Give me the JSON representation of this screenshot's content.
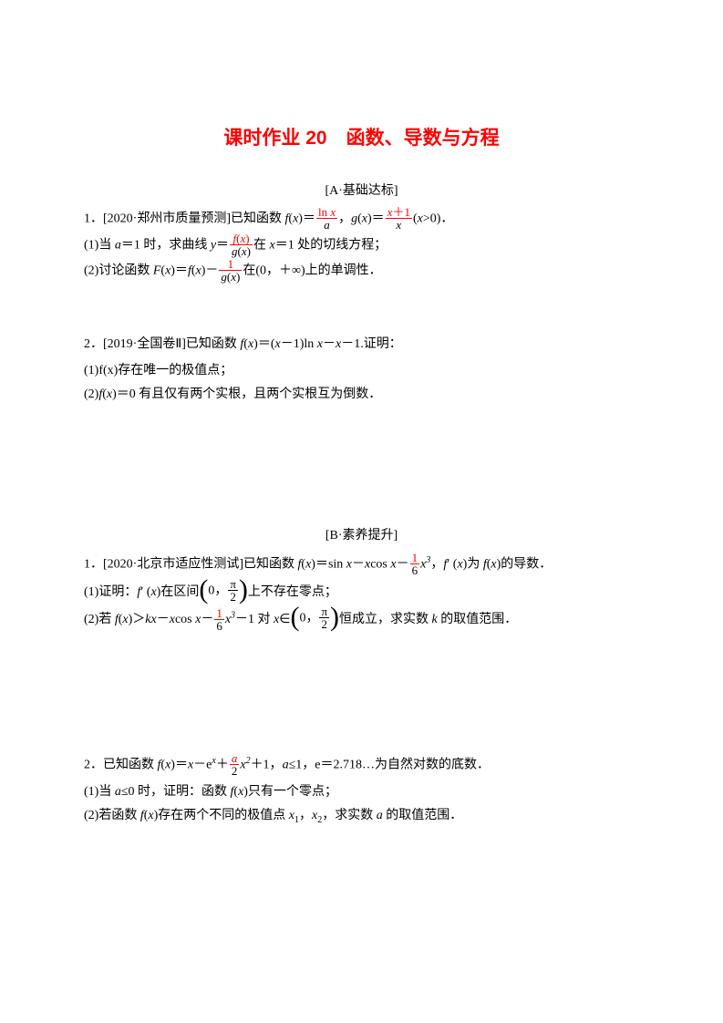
{
  "title": "课时作业 20　函数、导数与方程",
  "sectionA": {
    "label": "[A·基础达标]",
    "p1": {
      "stem_pre": "1．[2020·郑州市质量预测]已知函数 ",
      "fx": "f",
      "x": "x",
      "frac1_num": "ln x",
      "frac1_den": "a",
      "mid": "，",
      "gx": "g",
      "frac2_num": "x＋1",
      "frac2_den": "x",
      "tail": "(x>0)．",
      "sub1_pre": "(1)当 a＝1 时，求曲线 y＝",
      "sub1_frac_num": "f(x)",
      "sub1_frac_den": "g(x)",
      "sub1_post": "在 x＝1 处的切线方程；",
      "sub2_pre": "(2)讨论函数 F(x)＝f(x)－",
      "sub2_frac_num": "1",
      "sub2_frac_den": "g(x)",
      "sub2_post": "在(0，＋∞)上的单调性．"
    },
    "p2": {
      "stem": "2．[2019·全国卷Ⅱ]已知函数 f(x)＝(x－1)ln x－x－1.证明：",
      "sub1": "(1)f(x)存在唯一的极值点；",
      "sub2": "(2)f(x)＝0 有且仅有两个实根，且两个实根互为倒数．"
    }
  },
  "sectionB": {
    "label": "[B·素养提升]",
    "p1": {
      "stem_pre": "1．[2020·北京市适应性测试]已知函数 f(x)＝sin x－xcos x－",
      "frac_num": "1",
      "frac_den": "6",
      "stem_post": "x³，f′ (x)为 f(x)的导数．",
      "sub1_pre": "(1)证明：f′ (x)在区间",
      "interval_lo": "0，",
      "interval_hi_num": "π",
      "interval_hi_den": "2",
      "sub1_post": "上不存在零点；",
      "sub2_pre": "(2)若 f(x)＞kx－xcos x－",
      "sub2_frac_num": "1",
      "sub2_frac_den": "6",
      "sub2_mid": "x³－1 对 x∈",
      "sub2_post": "恒成立，求实数 k 的取值范围．"
    },
    "p2": {
      "stem_pre": "2．已知函数 f(x)＝x－eˣ＋",
      "frac_num": "a",
      "frac_den": "2",
      "stem_post": "x²＋1，a≤1，e＝2.718…为自然对数的底数．",
      "sub1": "(1)当 a≤0 时，证明：函数 f(x)只有一个零点；",
      "sub2": "(2)若函数 f(x)存在两个不同的极值点 x₁，x₂，求实数 a 的取值范围．"
    }
  }
}
